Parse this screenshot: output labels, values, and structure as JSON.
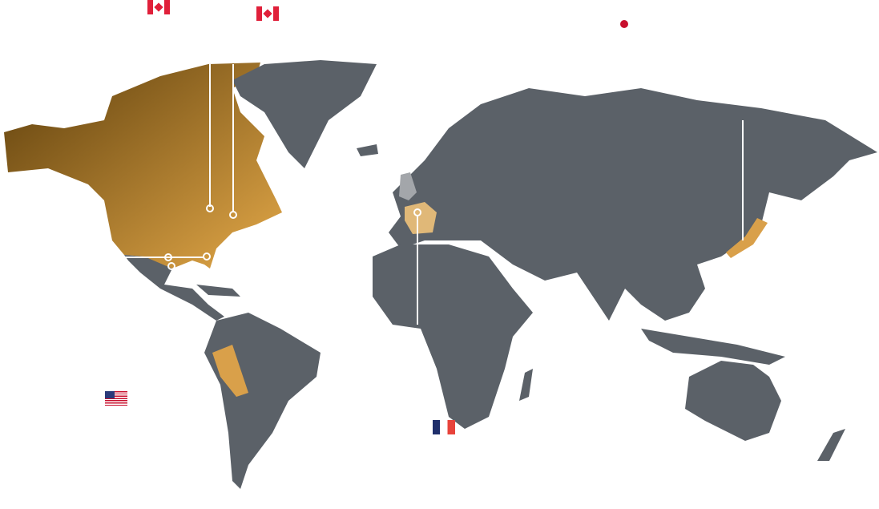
{
  "map": {
    "colors": {
      "land": "#5b6168",
      "highlight_dark": "#6b4a12",
      "highlight_light": "#e3a848",
      "france": "#e0b878",
      "uk": "#a3a6aa",
      "marker_line": "#ffffff"
    },
    "highlighted_regions": [
      "north-america",
      "peru",
      "france",
      "japan"
    ],
    "flags": [
      {
        "country": "canada",
        "icon": "canada-flag-icon"
      },
      {
        "country": "canada",
        "icon": "canada-flag-icon"
      },
      {
        "country": "japan",
        "icon": "japan-flag-icon"
      },
      {
        "country": "usa",
        "icon": "usa-flag-icon"
      },
      {
        "country": "france",
        "icon": "france-flag-icon"
      }
    ]
  }
}
